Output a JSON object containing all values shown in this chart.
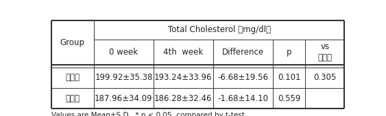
{
  "header_span": "Total Cholesterol （mg/dl）",
  "col_headers": [
    "Group",
    "0 week",
    "4th  week",
    "Difference",
    "p",
    "vs\n대조군"
  ],
  "rows": [
    [
      "시험군",
      "199.92±35.38",
      "193.24±33.96",
      "-6.68±19.56",
      "0.101",
      "0.305"
    ],
    [
      "대조군",
      "187.96±34.09",
      "186.28±32.46",
      "-1.68±14.10",
      "0.559",
      ""
    ]
  ],
  "footnote": "Values are Mean±S.D.  * p < 0.05, compared by t-test",
  "bg_color": "#ffffff",
  "line_color": "#333333",
  "text_color": "#222222"
}
